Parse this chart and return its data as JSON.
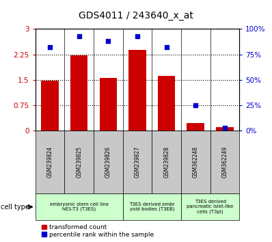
{
  "title": "GDS4011 / 243640_x_at",
  "samples": [
    "GSM239824",
    "GSM239825",
    "GSM239826",
    "GSM239827",
    "GSM239828",
    "GSM362248",
    "GSM362249"
  ],
  "transformed_count": [
    1.47,
    2.22,
    1.55,
    2.38,
    1.62,
    0.22,
    0.1
  ],
  "percentile_rank": [
    82,
    93,
    88,
    93,
    82,
    25,
    3
  ],
  "bar_color": "#cc0000",
  "dot_color": "#0000cc",
  "ylim_left": [
    0,
    3
  ],
  "ylim_right": [
    0,
    100
  ],
  "yticks_left": [
    0,
    0.75,
    1.5,
    2.25,
    3
  ],
  "ytick_labels_left": [
    "0",
    "0.75",
    "1.5",
    "2.25",
    "3"
  ],
  "yticks_right": [
    0,
    25,
    50,
    75,
    100
  ],
  "ytick_labels_right": [
    "0%",
    "25%",
    "50%",
    "75%",
    "100%"
  ],
  "cell_groups": [
    {
      "label": "embryonic stem cell line\nhES-T3 (T3ES)",
      "start": 0,
      "end": 3
    },
    {
      "label": "T3ES derived embr\nyoid bodies (T3EB)",
      "start": 3,
      "end": 5
    },
    {
      "label": "T3ES derived\npancreatic islet-like\ncells (T3pi)",
      "start": 5,
      "end": 7
    }
  ],
  "cell_group_color": "#ccffcc",
  "sample_bg_color": "#c8c8c8",
  "legend_red": "transformed count",
  "legend_blue": "percentile rank within the sample",
  "plot_bg": "white"
}
